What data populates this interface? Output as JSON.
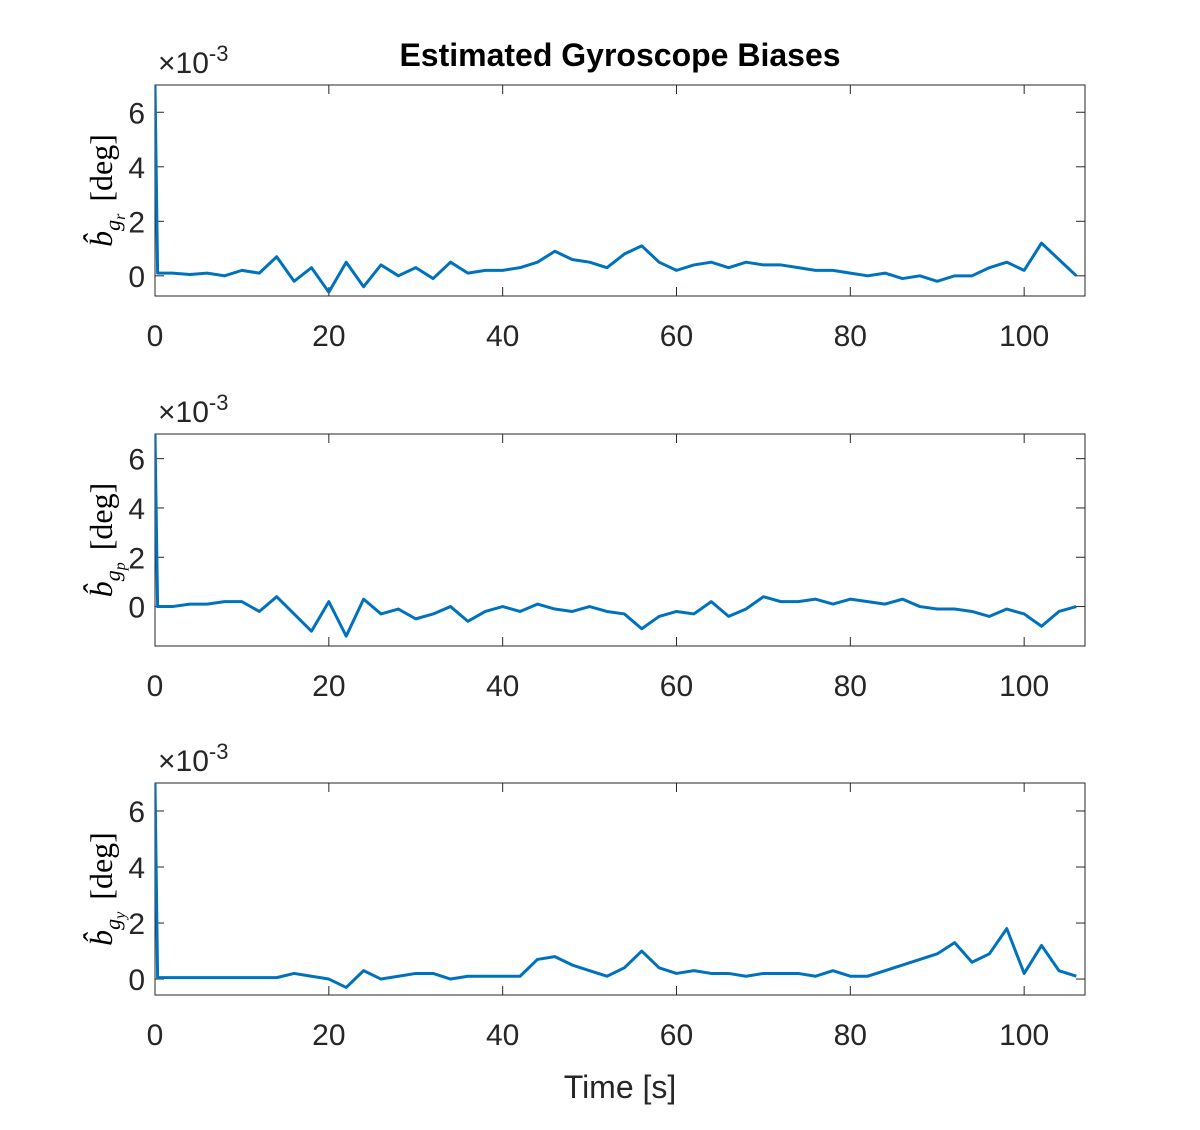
{
  "chart_data": [
    {
      "type": "line",
      "title": "Estimated Gyroscope Biases",
      "ylabel": {
        "symbol": "b̂",
        "sub": "g",
        "subsub": "r",
        "unit": "[deg]"
      },
      "exponent_label": {
        "multiplier": "×10",
        "exponent": "-3"
      },
      "xlim": [
        0,
        107
      ],
      "xticks": [
        0,
        20,
        40,
        60,
        80,
        100
      ],
      "ylim": [
        -0.00074,
        0.007
      ],
      "yticks": [
        {
          "value": 0,
          "label": "0"
        },
        {
          "value": 0.002,
          "label": "2"
        },
        {
          "value": 0.004,
          "label": "4"
        },
        {
          "value": 0.006,
          "label": "6"
        }
      ],
      "x": [
        0,
        0.3,
        2,
        4,
        6,
        8,
        10,
        12,
        14,
        16,
        18,
        20,
        22,
        24,
        26,
        28,
        30,
        32,
        34,
        36,
        38,
        40,
        42,
        44,
        46,
        48,
        50,
        52,
        54,
        56,
        58,
        60,
        62,
        64,
        66,
        68,
        70,
        72,
        74,
        76,
        78,
        80,
        82,
        84,
        86,
        88,
        90,
        92,
        94,
        96,
        98,
        100,
        102,
        104,
        106
      ],
      "series": [
        {
          "color": "#0072bd",
          "values": [
            0.007,
            0.0001,
            0.0001,
            5e-05,
            0.0001,
            0,
            0.0002,
            0.0001,
            0.0007,
            -0.0002,
            0.0003,
            -0.0006,
            0.0005,
            -0.0004,
            0.0004,
            0,
            0.0003,
            -0.0001,
            0.0005,
            0.0001,
            0.0002,
            0.0002,
            0.0003,
            0.0005,
            0.0009,
            0.0006,
            0.0005,
            0.0003,
            0.0008,
            0.0011,
            0.0005,
            0.0002,
            0.0004,
            0.0005,
            0.0003,
            0.0005,
            0.0004,
            0.0004,
            0.0003,
            0.0002,
            0.0002,
            0.0001,
            0,
            0.0001,
            -0.0001,
            0,
            -0.0002,
            0,
            0,
            0.0003,
            0.0005,
            0.0002,
            0.0012,
            0.0006,
            0
          ]
        }
      ]
    },
    {
      "type": "line",
      "ylabel": {
        "symbol": "b̂",
        "sub": "g",
        "subsub": "p",
        "unit": "[deg]"
      },
      "exponent_label": {
        "multiplier": "×10",
        "exponent": "-3"
      },
      "xlim": [
        0,
        107
      ],
      "xticks": [
        0,
        20,
        40,
        60,
        80,
        100
      ],
      "ylim": [
        -0.0016,
        0.007
      ],
      "yticks": [
        {
          "value": 0,
          "label": "0"
        },
        {
          "value": 0.002,
          "label": "2"
        },
        {
          "value": 0.004,
          "label": "4"
        },
        {
          "value": 0.006,
          "label": "6"
        }
      ],
      "x": [
        0,
        0.3,
        2,
        4,
        6,
        8,
        10,
        12,
        14,
        16,
        18,
        20,
        22,
        24,
        26,
        28,
        30,
        32,
        34,
        36,
        38,
        40,
        42,
        44,
        46,
        48,
        50,
        52,
        54,
        56,
        58,
        60,
        62,
        64,
        66,
        68,
        70,
        72,
        74,
        76,
        78,
        80,
        82,
        84,
        86,
        88,
        90,
        92,
        94,
        96,
        98,
        100,
        102,
        104,
        106
      ],
      "series": [
        {
          "color": "#0072bd",
          "values": [
            0.007,
            0,
            0,
            0.0001,
            0.0001,
            0.0002,
            0.0002,
            -0.0002,
            0.0004,
            -0.0003,
            -0.001,
            0.0002,
            -0.0012,
            0.0003,
            -0.0003,
            -0.0001,
            -0.0005,
            -0.0003,
            0,
            -0.0006,
            -0.0002,
            0,
            -0.0002,
            0.0001,
            -0.0001,
            -0.0002,
            0,
            -0.0002,
            -0.0003,
            -0.0009,
            -0.0004,
            -0.0002,
            -0.0003,
            0.0002,
            -0.0004,
            -0.0001,
            0.0004,
            0.0002,
            0.0002,
            0.0003,
            0.0001,
            0.0003,
            0.0002,
            0.0001,
            0.0003,
            0,
            -0.0001,
            -0.0001,
            -0.0002,
            -0.0004,
            -0.0001,
            -0.0003,
            -0.0008,
            -0.0002,
            0
          ]
        }
      ]
    },
    {
      "type": "line",
      "xlabel": "Time [s]",
      "ylabel": {
        "symbol": "b̂",
        "sub": "g",
        "subsub": "y",
        "unit": "[deg]"
      },
      "exponent_label": {
        "multiplier": "×10",
        "exponent": "-3"
      },
      "xlim": [
        0,
        107
      ],
      "xticks": [
        0,
        20,
        40,
        60,
        80,
        100
      ],
      "ylim": [
        -0.00057,
        0.007
      ],
      "yticks": [
        {
          "value": 0,
          "label": "0"
        },
        {
          "value": 0.002,
          "label": "2"
        },
        {
          "value": 0.004,
          "label": "4"
        },
        {
          "value": 0.006,
          "label": "6"
        }
      ],
      "x": [
        0,
        0.3,
        2,
        4,
        6,
        8,
        10,
        12,
        14,
        16,
        18,
        20,
        22,
        24,
        26,
        28,
        30,
        32,
        34,
        36,
        38,
        40,
        42,
        44,
        46,
        48,
        50,
        52,
        54,
        56,
        58,
        60,
        62,
        64,
        66,
        68,
        70,
        72,
        74,
        76,
        78,
        80,
        82,
        84,
        86,
        88,
        90,
        92,
        94,
        96,
        98,
        100,
        102,
        104,
        106
      ],
      "series": [
        {
          "color": "#0072bd",
          "values": [
            0.007,
            5e-05,
            5e-05,
            5e-05,
            5e-05,
            5e-05,
            5e-05,
            5e-05,
            5e-05,
            0.0002,
            0.0001,
            0,
            -0.0003,
            0.0003,
            0,
            0.0001,
            0.0002,
            0.0002,
            0,
            0.0001,
            0.0001,
            0.0001,
            0.0001,
            0.0007,
            0.0008,
            0.0005,
            0.0003,
            0.0001,
            0.0004,
            0.001,
            0.0004,
            0.0002,
            0.0003,
            0.0002,
            0.0002,
            0.0001,
            0.0002,
            0.0002,
            0.0002,
            0.0001,
            0.0003,
            0.0001,
            0.0001,
            0.0003,
            0.0005,
            0.0007,
            0.0009,
            0.0013,
            0.0006,
            0.0009,
            0.0018,
            0.0002,
            0.0012,
            0.0003,
            0.0001
          ]
        }
      ]
    }
  ]
}
